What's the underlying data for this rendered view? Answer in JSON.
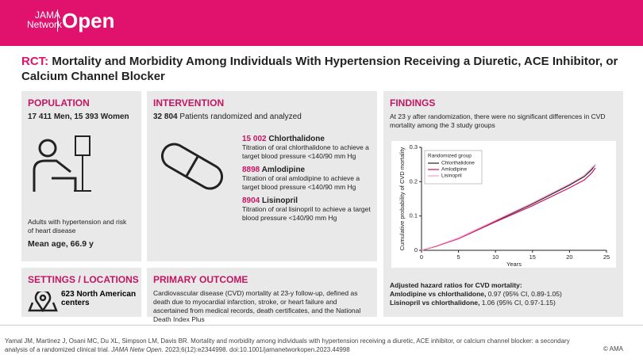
{
  "header": {
    "logo_top": "JAMA",
    "logo_bottom": "Network",
    "logo_open": "Open"
  },
  "title": {
    "prefix": "RCT:",
    "text": "Mortality and Morbidity Among Individuals With Hypertension Receiving a Diuretic, ACE Inhibitor, or Calcium Channel Blocker"
  },
  "population": {
    "heading": "POPULATION",
    "counts": "17 411 Men, 15 393 Women",
    "description": "Adults with hypertension and risk of heart disease",
    "age": "Mean age, 66.9 y"
  },
  "intervention": {
    "heading": "INTERVENTION",
    "total": "32 804",
    "total_text": "Patients randomized and analyzed",
    "groups": [
      {
        "n": "15 002",
        "name": "Chlorthalidone",
        "desc": "Titration of oral chlorthalidone to achieve a target blood pressure <140/90 mm Hg"
      },
      {
        "n": "8898",
        "name": "Amlodipine",
        "desc": "Titration of oral amlodipine to achieve a target blood pressure <140/90 mm Hg"
      },
      {
        "n": "8904",
        "name": "Lisinopril",
        "desc": "Titration of oral lisinopril to achieve a target blood pressure <140/90 mm Hg"
      }
    ]
  },
  "settings": {
    "heading": "SETTINGS / LOCATIONS",
    "text": "623 North American centers"
  },
  "outcome": {
    "heading": "PRIMARY OUTCOME",
    "text": "Cardiovascular disease (CVD) mortality at 23-y follow-up, defined as death due to myocardial infarction, stroke, or heart failure and ascertained from medical records, death certificates, and the National Death Index Plus"
  },
  "findings": {
    "heading": "FINDINGS",
    "text": "At 23 y after randomization, there were no significant differences in CVD mortality among the 3 study groups",
    "chart": {
      "type": "line",
      "ylabel": "Cumulative probability of CVD mortality",
      "xlabel": "Years",
      "legend_title": "Randomized group",
      "xlim": [
        0,
        25
      ],
      "xticks": [
        0,
        5,
        10,
        15,
        20,
        25
      ],
      "ylim": [
        0,
        0.3
      ],
      "yticks": [
        0,
        0.1,
        0.2,
        0.3
      ],
      "x": [
        0,
        2,
        5,
        10,
        15,
        20,
        22,
        23,
        23.5
      ],
      "series": [
        {
          "name": "Chlorthalidone",
          "color": "#222222",
          "values": [
            0,
            0.012,
            0.035,
            0.085,
            0.135,
            0.19,
            0.215,
            0.235,
            0.25
          ]
        },
        {
          "name": "Amlodipine",
          "color": "#d0106b",
          "values": [
            0,
            0.012,
            0.034,
            0.083,
            0.13,
            0.182,
            0.205,
            0.225,
            0.24
          ]
        },
        {
          "name": "Lisinopril",
          "color": "#f2a0c4",
          "values": [
            0,
            0.013,
            0.036,
            0.087,
            0.138,
            0.193,
            0.218,
            0.24,
            0.25
          ]
        }
      ]
    },
    "hr_heading": "Adjusted  hazard ratios for CVD mortality:",
    "hr": [
      {
        "label": "Amlodipine vs chlorthalidone,",
        "value": "0.97 (95% CI, 0.89-1.05)"
      },
      {
        "label": "Lisinopril vs chlorthalidone,",
        "value": "1.06 (95% CI, 0.97-1.15)"
      }
    ]
  },
  "footer": {
    "citation_start": "Yamal JM, Martinez J, Osani MC, Du XL, Simpson LM, Davis BR. Mortality and morbidity among individuals with hypertension receiving a diuretic, ACE inhibitor, or calcium channel blocker: a secondary analysis of a randomized clinical trial.",
    "journal": "JAMA Netw Open.",
    "citation_end": "2023;6(12):e2344998. doi:10.1001/jamanetworkopen.2023.44998",
    "copyright": "© AMA"
  }
}
